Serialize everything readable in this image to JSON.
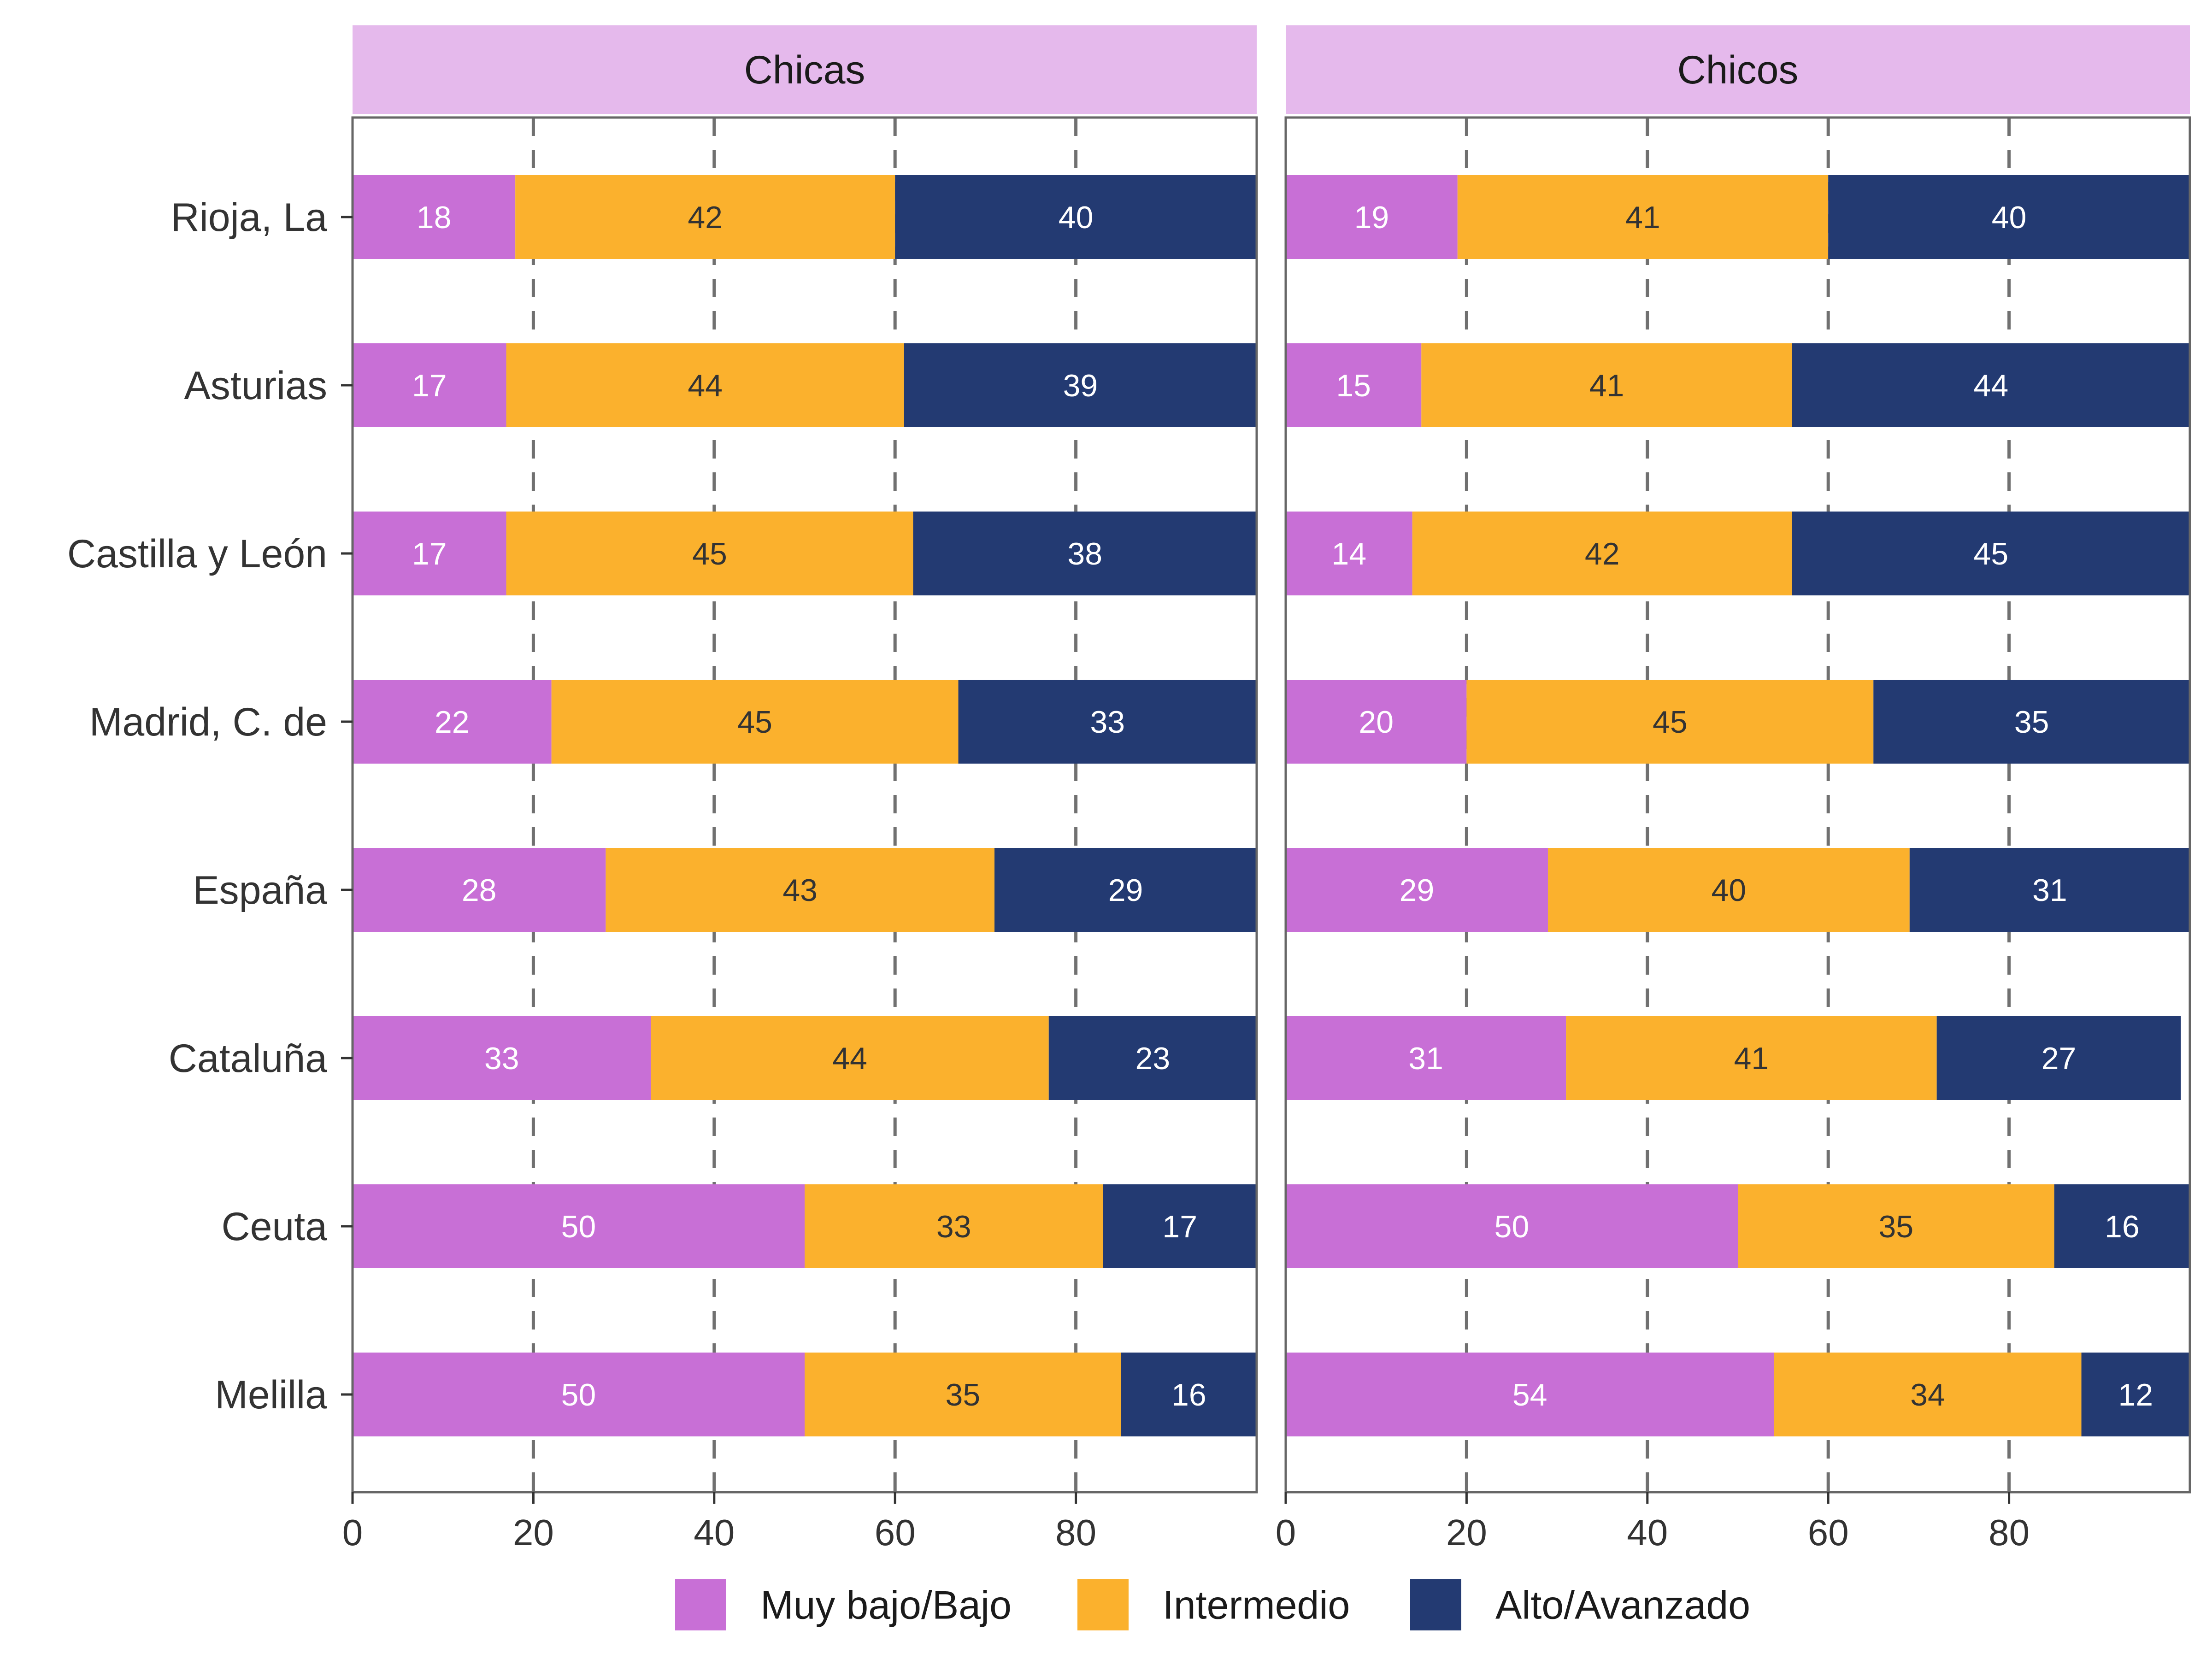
{
  "chart_data": {
    "type": "bar",
    "orientation": "horizontal",
    "stacked": true,
    "facets": [
      "Chicas",
      "Chicos"
    ],
    "categories": [
      "Rioja, La",
      "Asturias",
      "Castilla y León",
      "Madrid, C. de",
      "España",
      "Cataluña",
      "Ceuta",
      "Melilla"
    ],
    "series": [
      {
        "name": "Muy bajo/Bajo",
        "color": "#C86FD6",
        "values": {
          "Chicas": [
            18,
            17,
            17,
            22,
            28,
            33,
            50,
            50
          ],
          "Chicos": [
            19,
            15,
            14,
            20,
            29,
            31,
            50,
            54
          ]
        },
        "labels": {
          "Chicas": [
            "18",
            "17",
            "17",
            "22",
            "28",
            "33",
            "50",
            "50"
          ],
          "Chicos": [
            "19",
            "15",
            "14",
            "20",
            "29",
            "31",
            "50",
            "54"
          ]
        }
      },
      {
        "name": "Intermedio",
        "color": "#FBB12D",
        "values": {
          "Chicas": [
            42,
            44,
            45,
            45,
            43,
            44,
            33,
            35
          ],
          "Chicos": [
            41,
            41,
            42,
            45,
            40,
            41,
            35,
            34
          ]
        },
        "labels": {
          "Chicas": [
            "42",
            "44",
            "45",
            "45",
            "43",
            "44",
            "33",
            "35"
          ],
          "Chicos": [
            "41",
            "41",
            "42",
            "45",
            "40",
            "41",
            "35",
            "34"
          ]
        }
      },
      {
        "name": "Alto/Avanzado",
        "color": "#233A72",
        "values": {
          "Chicas": [
            40,
            39,
            38,
            33,
            29,
            23,
            17,
            16
          ],
          "Chicos": [
            40,
            44,
            45,
            35,
            31,
            27,
            16,
            12
          ]
        },
        "labels": {
          "Chicas": [
            "40",
            "39",
            "38",
            "33",
            "29",
            "23",
            "17",
            "16"
          ],
          "Chicos": [
            "40",
            "44",
            "45",
            "35",
            "31",
            "27",
            "16",
            "12"
          ]
        }
      }
    ],
    "x_ticks": [
      0,
      20,
      40,
      60,
      80
    ],
    "x_tick_labels": [
      "0",
      "20",
      "40",
      "60",
      "80"
    ],
    "xlim": [
      0,
      100
    ],
    "grid": "dashed vertical lines at 20, 40, 60, 80",
    "legend_position": "bottom",
    "title": "",
    "xlabel": "",
    "ylabel": "",
    "colors": {
      "facet_strip": "#E5B9EC",
      "panel_border": "#666666",
      "gridline": "#707070",
      "text": "#333333"
    }
  }
}
